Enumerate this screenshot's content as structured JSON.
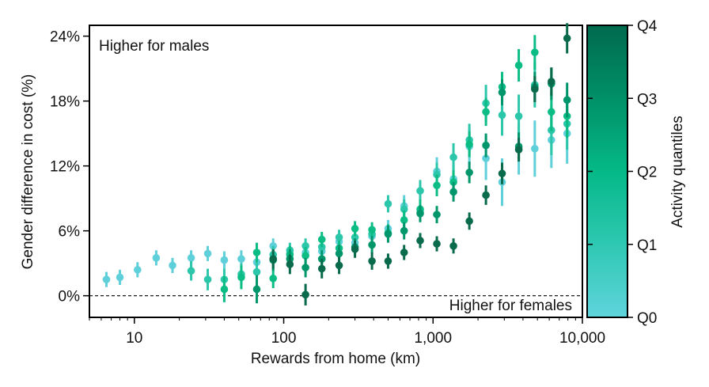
{
  "chart_data": {
    "type": "scatter",
    "title": "",
    "xlabel": "Rewards from home (km)",
    "ylabel": "Gender difference in cost (%)",
    "xscale": "log",
    "xlim": [
      5,
      10000
    ],
    "ylim": [
      -2,
      25
    ],
    "x_ticks": [
      {
        "value": 10,
        "label": "10"
      },
      {
        "value": 100,
        "label": "100"
      },
      {
        "value": 1000,
        "label": "1,000"
      },
      {
        "value": 10000,
        "label": "10,000"
      }
    ],
    "y_ticks": [
      {
        "value": 0,
        "label": "0%"
      },
      {
        "value": 6,
        "label": "6%"
      },
      {
        "value": 12,
        "label": "12%"
      },
      {
        "value": 18,
        "label": "18%"
      },
      {
        "value": 24,
        "label": "24%"
      }
    ],
    "reference_line": {
      "y": 0,
      "style": "dashed"
    },
    "annotations": [
      {
        "text": "Higher for males",
        "position": "top-left"
      },
      {
        "text": "Higher for females",
        "position": "bottom-right"
      }
    ],
    "colorbar": {
      "label": "Activity quantiles",
      "ticks": [
        "Q0",
        "Q1",
        "Q2",
        "Q3",
        "Q4"
      ],
      "colors": [
        "#5fd4dc",
        "#2ec8b2",
        "#05b987",
        "#009068",
        "#006a4e"
      ]
    },
    "series": [
      {
        "name": "Q0",
        "color": "#5fd0da",
        "points": [
          {
            "x": 6.5,
            "y": 1.5,
            "err": 0.7
          },
          {
            "x": 8,
            "y": 1.7,
            "err": 0.7
          },
          {
            "x": 10.5,
            "y": 2.4,
            "err": 0.7
          },
          {
            "x": 14,
            "y": 3.5,
            "err": 0.7
          },
          {
            "x": 18,
            "y": 2.8,
            "err": 0.7
          },
          {
            "x": 24,
            "y": 3.5,
            "err": 0.7
          },
          {
            "x": 31,
            "y": 3.9,
            "err": 0.7
          },
          {
            "x": 40,
            "y": 3.3,
            "err": 0.8
          },
          {
            "x": 52,
            "y": 3.4,
            "err": 0.8
          },
          {
            "x": 66,
            "y": 3.1,
            "err": 0.8
          },
          {
            "x": 85,
            "y": 4.6,
            "err": 0.7
          },
          {
            "x": 110,
            "y": 3.9,
            "err": 0.7
          },
          {
            "x": 140,
            "y": 4.0,
            "err": 0.7
          },
          {
            "x": 180,
            "y": 4.1,
            "err": 0.7
          },
          {
            "x": 235,
            "y": 5.0,
            "err": 0.7
          },
          {
            "x": 300,
            "y": 4.9,
            "err": 0.7
          },
          {
            "x": 390,
            "y": 5.5,
            "err": 0.8
          },
          {
            "x": 500,
            "y": 6.2,
            "err": 0.8
          },
          {
            "x": 640,
            "y": 8.3,
            "err": 1.0
          },
          {
            "x": 820,
            "y": 7.8,
            "err": 1.0
          },
          {
            "x": 1060,
            "y": 11.5,
            "err": 1.3
          },
          {
            "x": 1370,
            "y": 10.8,
            "err": 1.5
          },
          {
            "x": 1750,
            "y": 13.8,
            "err": 1.7
          },
          {
            "x": 2260,
            "y": 12.7,
            "err": 2.0
          },
          {
            "x": 2900,
            "y": 10.5,
            "err": 2.2
          },
          {
            "x": 3750,
            "y": 13.6,
            "err": 2.4
          },
          {
            "x": 4800,
            "y": 13.6,
            "err": 2.6
          },
          {
            "x": 6200,
            "y": 14.4,
            "err": 2.6
          },
          {
            "x": 7900,
            "y": 15.0,
            "err": 2.8
          }
        ]
      },
      {
        "name": "Q1",
        "color": "#2cc6aa",
        "points": [
          {
            "x": 24,
            "y": 2.3,
            "err": 0.9
          },
          {
            "x": 31,
            "y": 1.5,
            "err": 1.0
          },
          {
            "x": 40,
            "y": 1.5,
            "err": 1.0
          },
          {
            "x": 52,
            "y": 2.0,
            "err": 1.0
          },
          {
            "x": 66,
            "y": 2.2,
            "err": 1.0
          },
          {
            "x": 85,
            "y": 3.8,
            "err": 0.8
          },
          {
            "x": 110,
            "y": 4.2,
            "err": 0.7
          },
          {
            "x": 140,
            "y": 4.6,
            "err": 0.7
          },
          {
            "x": 180,
            "y": 4.5,
            "err": 0.7
          },
          {
            "x": 235,
            "y": 5.4,
            "err": 0.7
          },
          {
            "x": 300,
            "y": 5.4,
            "err": 0.7
          },
          {
            "x": 390,
            "y": 5.7,
            "err": 0.7
          },
          {
            "x": 500,
            "y": 8.5,
            "err": 0.8
          },
          {
            "x": 640,
            "y": 8.0,
            "err": 0.9
          },
          {
            "x": 820,
            "y": 9.7,
            "err": 1.0
          },
          {
            "x": 1060,
            "y": 11.2,
            "err": 1.1
          },
          {
            "x": 1370,
            "y": 12.8,
            "err": 1.3
          },
          {
            "x": 1750,
            "y": 14.4,
            "err": 1.5
          },
          {
            "x": 2260,
            "y": 17.8,
            "err": 1.7
          },
          {
            "x": 2900,
            "y": 16.7,
            "err": 1.9
          },
          {
            "x": 3750,
            "y": 16.6,
            "err": 2.0
          },
          {
            "x": 4800,
            "y": 19.5,
            "err": 2.1
          },
          {
            "x": 6200,
            "y": 15.3,
            "err": 2.3
          },
          {
            "x": 7900,
            "y": 15.9,
            "err": 2.4
          }
        ]
      },
      {
        "name": "Q2",
        "color": "#0bbd85",
        "points": [
          {
            "x": 40,
            "y": 0.6,
            "err": 1.2
          },
          {
            "x": 52,
            "y": 1.7,
            "err": 1.1
          },
          {
            "x": 66,
            "y": 4.0,
            "err": 0.9
          },
          {
            "x": 85,
            "y": 1.6,
            "err": 0.9
          },
          {
            "x": 110,
            "y": 3.8,
            "err": 0.8
          },
          {
            "x": 140,
            "y": 3.7,
            "err": 0.8
          },
          {
            "x": 180,
            "y": 5.2,
            "err": 0.7
          },
          {
            "x": 235,
            "y": 4.4,
            "err": 0.7
          },
          {
            "x": 300,
            "y": 6.2,
            "err": 0.7
          },
          {
            "x": 390,
            "y": 6.1,
            "err": 0.7
          },
          {
            "x": 500,
            "y": 5.8,
            "err": 0.8
          },
          {
            "x": 640,
            "y": 7.0,
            "err": 0.9
          },
          {
            "x": 820,
            "y": 8.0,
            "err": 0.9
          },
          {
            "x": 1060,
            "y": 10.2,
            "err": 1.0
          },
          {
            "x": 1370,
            "y": 10.5,
            "err": 1.1
          },
          {
            "x": 1750,
            "y": 14.0,
            "err": 1.2
          },
          {
            "x": 2260,
            "y": 17.0,
            "err": 1.3
          },
          {
            "x": 2900,
            "y": 19.3,
            "err": 1.4
          },
          {
            "x": 3750,
            "y": 21.3,
            "err": 1.5
          },
          {
            "x": 4800,
            "y": 22.5,
            "err": 1.6
          },
          {
            "x": 6200,
            "y": 17.0,
            "err": 1.8
          },
          {
            "x": 7900,
            "y": 16.6,
            "err": 2.0
          }
        ]
      },
      {
        "name": "Q3",
        "color": "#00966b",
        "points": [
          {
            "x": 66,
            "y": 0.6,
            "err": 1.3
          },
          {
            "x": 85,
            "y": 3.3,
            "err": 1.0
          },
          {
            "x": 110,
            "y": 3.4,
            "err": 0.9
          },
          {
            "x": 140,
            "y": 2.6,
            "err": 0.9
          },
          {
            "x": 180,
            "y": 3.4,
            "err": 0.8
          },
          {
            "x": 235,
            "y": 3.9,
            "err": 0.8
          },
          {
            "x": 300,
            "y": 4.5,
            "err": 0.8
          },
          {
            "x": 390,
            "y": 4.7,
            "err": 0.8
          },
          {
            "x": 500,
            "y": 5.7,
            "err": 0.8
          },
          {
            "x": 640,
            "y": 6.0,
            "err": 0.8
          },
          {
            "x": 820,
            "y": 7.6,
            "err": 0.8
          },
          {
            "x": 1060,
            "y": 7.5,
            "err": 0.8
          },
          {
            "x": 1370,
            "y": 9.6,
            "err": 0.9
          },
          {
            "x": 1750,
            "y": 11.4,
            "err": 1.0
          },
          {
            "x": 2260,
            "y": 13.9,
            "err": 1.1
          },
          {
            "x": 2900,
            "y": 18.8,
            "err": 1.2
          },
          {
            "x": 3750,
            "y": 13.8,
            "err": 1.3
          },
          {
            "x": 4800,
            "y": 19.3,
            "err": 1.4
          },
          {
            "x": 6200,
            "y": 19.6,
            "err": 1.5
          },
          {
            "x": 7900,
            "y": 18.1,
            "err": 1.6
          }
        ]
      },
      {
        "name": "Q4",
        "color": "#0a6a4c",
        "points": [
          {
            "x": 85,
            "y": 3.4,
            "err": 0.9
          },
          {
            "x": 110,
            "y": 2.9,
            "err": 0.9
          },
          {
            "x": 140,
            "y": 0.1,
            "err": 1.0
          },
          {
            "x": 180,
            "y": 2.5,
            "err": 0.9
          },
          {
            "x": 235,
            "y": 2.8,
            "err": 0.8
          },
          {
            "x": 300,
            "y": 4.3,
            "err": 0.8
          },
          {
            "x": 390,
            "y": 3.2,
            "err": 0.8
          },
          {
            "x": 500,
            "y": 3.2,
            "err": 0.7
          },
          {
            "x": 640,
            "y": 4.0,
            "err": 0.7
          },
          {
            "x": 820,
            "y": 5.1,
            "err": 0.7
          },
          {
            "x": 1060,
            "y": 4.8,
            "err": 0.7
          },
          {
            "x": 1370,
            "y": 4.6,
            "err": 0.7
          },
          {
            "x": 1750,
            "y": 6.9,
            "err": 0.8
          },
          {
            "x": 2260,
            "y": 9.3,
            "err": 0.9
          },
          {
            "x": 2900,
            "y": 11.3,
            "err": 1.0
          },
          {
            "x": 3750,
            "y": 13.5,
            "err": 1.1
          },
          {
            "x": 4800,
            "y": 19.1,
            "err": 1.2
          },
          {
            "x": 6200,
            "y": 19.8,
            "err": 1.3
          },
          {
            "x": 7900,
            "y": 23.8,
            "err": 1.4
          }
        ]
      }
    ]
  }
}
